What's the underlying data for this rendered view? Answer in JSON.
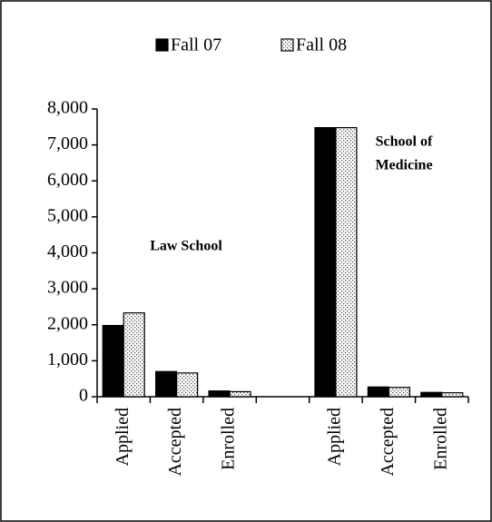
{
  "chart_data": {
    "type": "bar",
    "categories": [
      "Applied",
      "Accepted",
      "Enrolled",
      null,
      "Applied",
      "Accepted",
      "Enrolled"
    ],
    "series": [
      {
        "name": "Fall 07",
        "color": "#000000",
        "values": [
          1980,
          700,
          160,
          null,
          7480,
          270,
          120
        ]
      },
      {
        "name": "Fall 08",
        "color": "#000000",
        "pattern": "dots",
        "values": [
          2330,
          660,
          140,
          null,
          7480,
          260,
          110
        ]
      }
    ],
    "ylim": [
      0,
      8000
    ],
    "yticks": [
      0,
      {
        "value": 1000,
        "label": "1,000"
      },
      {
        "value": 2000,
        "label": "2,000"
      },
      {
        "value": 3000,
        "label": "3,000"
      },
      {
        "value": 4000,
        "label": "4,000"
      },
      {
        "value": 5000,
        "label": "5,000"
      },
      {
        "value": 6000,
        "label": "6,000"
      },
      {
        "value": 7000,
        "label": "7,000"
      },
      {
        "value": 8000,
        "label": "8,000"
      }
    ],
    "grid": false,
    "legend": "top",
    "annotations": [
      {
        "lines": [
          "Law School"
        ]
      },
      {
        "lines": [
          "School of",
          "Medicine"
        ]
      }
    ]
  }
}
